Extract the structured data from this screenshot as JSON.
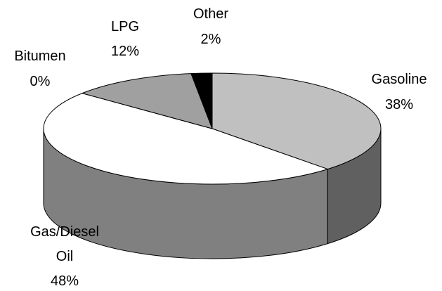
{
  "chart_data": {
    "type": "pie",
    "style": "3d",
    "slices": [
      {
        "label": "Gasoline",
        "pct_label": "38%",
        "value": 38,
        "color": "#c0c0c0",
        "side_color": "#606060"
      },
      {
        "label": "Gas/Diesel Oil",
        "pct_label": "48%",
        "value": 48,
        "color": "#ffffff",
        "side_color": "#808080"
      },
      {
        "label": "Bitumen",
        "pct_label": "0%",
        "value": 0,
        "color": "#e0e0e0",
        "side_color": "#909090"
      },
      {
        "label": "LPG",
        "pct_label": "12%",
        "value": 12,
        "color": "#a0a0a0",
        "side_color": "#707070"
      },
      {
        "label": "Other",
        "pct_label": "2%",
        "value": 2,
        "color": "#000000",
        "side_color": "#000000"
      }
    ],
    "label_lines": {
      "gasoline": [
        "Gasoline",
        "38%"
      ],
      "gas_diesel_oil": [
        "Gas/Diesel",
        "Oil",
        "48%"
      ],
      "bitumen": [
        "Bitumen",
        "0%"
      ],
      "lpg": [
        "LPG",
        "12%"
      ],
      "other": [
        "Other",
        "2%"
      ]
    },
    "legend": "none",
    "grid": false
  }
}
